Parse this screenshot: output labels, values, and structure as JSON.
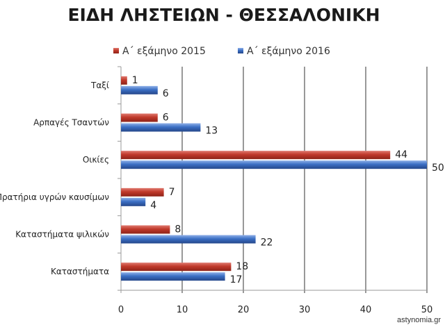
{
  "chart_data": {
    "type": "bar",
    "orientation": "horizontal",
    "title": "ΕΙΔΗ ΛΗΣΤΕΙΩΝ - ΘΕΣΣΑΛΟΝΙΚΗ",
    "categories": [
      "Ταξί",
      "Αρπαγές Τσαντών",
      "Οικίες",
      "Πρατήρια υγρών καυσίμων",
      "Καταστήματα ψιλικών",
      "Καταστήματα"
    ],
    "series": [
      {
        "name": "Α΄ εξάμηνο 2015",
        "color": "#c0392b",
        "values": [
          1,
          6,
          44,
          7,
          8,
          18
        ]
      },
      {
        "name": "Α΄ εξάμηνο 2016",
        "color": "#3b6fc4",
        "values": [
          6,
          13,
          50,
          4,
          22,
          17
        ]
      }
    ],
    "xlim": [
      0,
      50
    ],
    "xticks": [
      0,
      10,
      20,
      30,
      40,
      50
    ],
    "grid": true,
    "legend": "top",
    "xlabel": "",
    "ylabel": ""
  },
  "watermark": "astynomia.gr"
}
